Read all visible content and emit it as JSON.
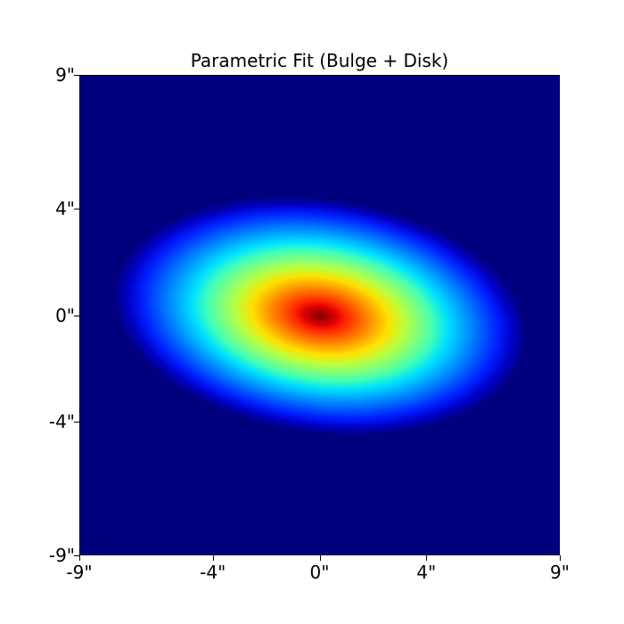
{
  "chart_data": {
    "type": "heatmap",
    "title": "Parametric Fit (Bulge + Disk)",
    "xlabel": "",
    "ylabel": "",
    "xlim": [
      -9,
      9
    ],
    "ylim": [
      -9,
      9
    ],
    "x_ticks": [
      "-9\"",
      "-4\"",
      "0\"",
      "4\"",
      "9\""
    ],
    "y_ticks": [
      "9\"",
      "4\"",
      "0\"",
      "-4\"",
      "-9\""
    ],
    "colormap": "jet",
    "background_color": "#00007f",
    "peak_color": "#800000",
    "model": {
      "center": [
        0,
        0
      ],
      "components": [
        "Bulge",
        "Disk"
      ],
      "axis_ratio": 0.56,
      "position_angle_deg": -8
    },
    "grid": false
  }
}
